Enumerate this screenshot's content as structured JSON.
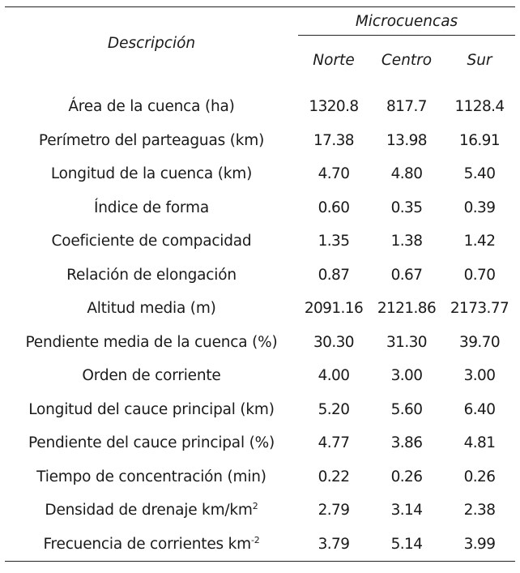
{
  "table": {
    "header": {
      "description_label": "Descripción",
      "group_label": "Microcuencas",
      "columns": [
        "Norte",
        "Centro",
        "Sur"
      ]
    },
    "rows": [
      {
        "label": "Área de la cuenca (ha)",
        "unit_sup": "",
        "values": [
          "1320.8",
          "817.7",
          "1128.4"
        ]
      },
      {
        "label": "Perímetro del parteaguas (km)",
        "unit_sup": "",
        "values": [
          "17.38",
          "13.98",
          "16.91"
        ]
      },
      {
        "label": "Longitud de la cuenca (km)",
        "unit_sup": "",
        "values": [
          "4.70",
          "4.80",
          "5.40"
        ]
      },
      {
        "label": "Índice de forma",
        "unit_sup": "",
        "values": [
          "0.60",
          "0.35",
          "0.39"
        ]
      },
      {
        "label": "Coeficiente de compacidad",
        "unit_sup": "",
        "values": [
          "1.35",
          "1.38",
          "1.42"
        ]
      },
      {
        "label": "Relación de elongación",
        "unit_sup": "",
        "values": [
          "0.87",
          "0.67",
          "0.70"
        ]
      },
      {
        "label": "Altitud media (m)",
        "unit_sup": "",
        "values": [
          "2091.16",
          "2121.86",
          "2173.77"
        ]
      },
      {
        "label": "Pendiente media de la cuenca (%)",
        "unit_sup": "",
        "values": [
          "30.30",
          "31.30",
          "39.70"
        ]
      },
      {
        "label": "Orden de corriente",
        "unit_sup": "",
        "values": [
          "4.00",
          "3.00",
          "3.00"
        ]
      },
      {
        "label": "Longitud del cauce principal (km)",
        "unit_sup": "",
        "values": [
          "5.20",
          "5.60",
          "6.40"
        ]
      },
      {
        "label": "Pendiente del cauce principal (%)",
        "unit_sup": "",
        "values": [
          "4.77",
          "3.86",
          "4.81"
        ]
      },
      {
        "label": "Tiempo de concentración (min)",
        "unit_sup": "",
        "values": [
          "0.22",
          "0.26",
          "0.26"
        ]
      },
      {
        "label": "Densidad de drenaje km/km",
        "unit_sup": "2",
        "values": [
          "2.79",
          "3.14",
          "2.38"
        ]
      },
      {
        "label": "Frecuencia de corrientes km",
        "unit_sup": "-2",
        "values": [
          "3.79",
          "5.14",
          "3.99"
        ]
      }
    ]
  }
}
